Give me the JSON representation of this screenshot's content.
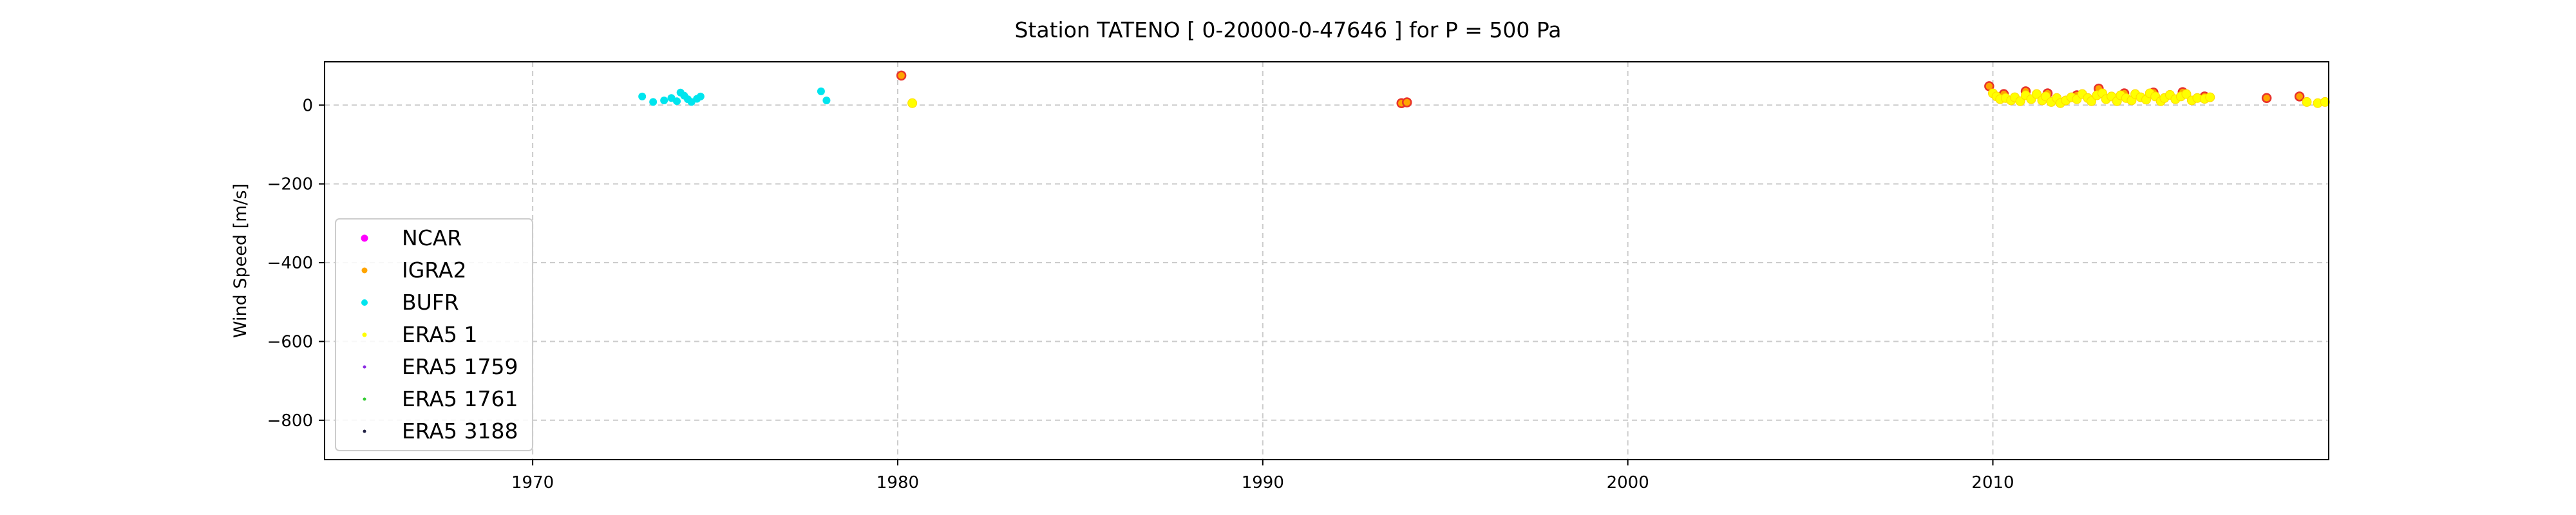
{
  "chart_data": {
    "type": "scatter",
    "title": "Station  TATENO [ 0-20000-0-47646 ]  for P = 500 Pa",
    "xlabel": "",
    "ylabel": "Wind Speed [m/s]",
    "xlim": [
      1964.3,
      2019.2
    ],
    "ylim": [
      -900,
      110
    ],
    "xticks": [
      1970,
      1980,
      1990,
      2000,
      2010
    ],
    "yticks": [
      0,
      -200,
      -400,
      -600,
      -800
    ],
    "ytick_labels": [
      "0",
      "−200",
      "−400",
      "−600",
      "−800"
    ],
    "grid": true,
    "legend_position": "lower-left",
    "series": [
      {
        "name": "NCAR",
        "color": "#ff00ff",
        "marker": "filled",
        "points": []
      },
      {
        "name": "IGRA2",
        "color": "#ffa500",
        "marker": "open-red-edge",
        "points": [
          [
            1980.1,
            75
          ],
          [
            1993.8,
            5
          ],
          [
            1993.95,
            7
          ],
          [
            2009.9,
            48
          ],
          [
            2010.3,
            28
          ],
          [
            2010.9,
            35
          ],
          [
            2011.5,
            30
          ],
          [
            2012.3,
            25
          ],
          [
            2012.9,
            42
          ],
          [
            2013.6,
            30
          ],
          [
            2014.4,
            32
          ],
          [
            2015.2,
            33
          ],
          [
            2015.8,
            22
          ],
          [
            2017.5,
            18
          ],
          [
            2018.4,
            22
          ]
        ]
      },
      {
        "name": "BUFR",
        "color": "#00e5ee",
        "marker": "filled",
        "points": [
          [
            1973.0,
            22
          ],
          [
            1973.3,
            8
          ],
          [
            1973.6,
            12
          ],
          [
            1973.8,
            18
          ],
          [
            1973.95,
            10
          ],
          [
            1974.05,
            32
          ],
          [
            1974.15,
            24
          ],
          [
            1974.25,
            15
          ],
          [
            1974.35,
            8
          ],
          [
            1974.5,
            16
          ],
          [
            1974.6,
            22
          ],
          [
            1977.9,
            35
          ],
          [
            1978.05,
            12
          ]
        ]
      },
      {
        "name": "ERA5 1",
        "color": "#ffff00",
        "marker": "small",
        "points": [
          [
            1980.4,
            5
          ],
          [
            2010.0,
            30
          ],
          [
            2010.1,
            22
          ],
          [
            2010.2,
            15
          ],
          [
            2010.35,
            18
          ],
          [
            2010.5,
            12
          ],
          [
            2010.6,
            20
          ],
          [
            2010.75,
            10
          ],
          [
            2010.9,
            25
          ],
          [
            2011.05,
            15
          ],
          [
            2011.2,
            28
          ],
          [
            2011.35,
            12
          ],
          [
            2011.45,
            22
          ],
          [
            2011.6,
            8
          ],
          [
            2011.75,
            18
          ],
          [
            2011.85,
            5
          ],
          [
            2012.0,
            12
          ],
          [
            2012.15,
            20
          ],
          [
            2012.3,
            15
          ],
          [
            2012.45,
            28
          ],
          [
            2012.6,
            18
          ],
          [
            2012.7,
            10
          ],
          [
            2012.85,
            25
          ],
          [
            2013.0,
            30
          ],
          [
            2013.1,
            15
          ],
          [
            2013.25,
            22
          ],
          [
            2013.4,
            10
          ],
          [
            2013.5,
            25
          ],
          [
            2013.65,
            18
          ],
          [
            2013.8,
            12
          ],
          [
            2013.9,
            28
          ],
          [
            2014.05,
            20
          ],
          [
            2014.2,
            14
          ],
          [
            2014.3,
            30
          ],
          [
            2014.45,
            22
          ],
          [
            2014.6,
            10
          ],
          [
            2014.7,
            18
          ],
          [
            2014.85,
            26
          ],
          [
            2015.0,
            15
          ],
          [
            2015.15,
            22
          ],
          [
            2015.3,
            28
          ],
          [
            2015.45,
            12
          ],
          [
            2015.6,
            18
          ],
          [
            2015.8,
            16
          ],
          [
            2015.95,
            20
          ],
          [
            2018.6,
            8
          ],
          [
            2018.9,
            5
          ],
          [
            2019.1,
            8
          ]
        ]
      },
      {
        "name": "ERA5 1759",
        "color": "#8a2be2",
        "marker": "tiny",
        "points": []
      },
      {
        "name": "ERA5 1761",
        "color": "#33cc33",
        "marker": "tiny",
        "points": []
      },
      {
        "name": "ERA5 3188",
        "color": "#222244",
        "marker": "tiny",
        "points": []
      }
    ]
  }
}
